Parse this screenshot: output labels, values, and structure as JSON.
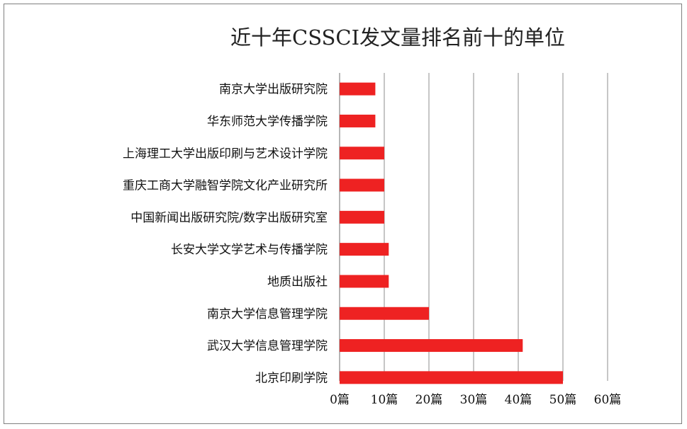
{
  "chart_data": {
    "type": "bar",
    "orientation": "horizontal",
    "title": "近十年CSSCI发文量排名前十的单位",
    "categories": [
      "南京大学出版研究院",
      "华东师范大学传播学院",
      "上海理工大学出版印刷与艺术设计学院",
      "重庆工商大学融智学院文化产业研究所",
      "中国新闻出版研究院/数字出版研究室",
      "长安大学文学艺术与传播学院",
      "地质出版社",
      "南京大学信息管理学院",
      "武汉大学信息管理学院",
      "北京印刷学院"
    ],
    "values": [
      8,
      8,
      10,
      10,
      10,
      11,
      11,
      20,
      41,
      50
    ],
    "xlim": [
      0,
      60
    ],
    "x_ticks": [
      "0篇",
      "10篇",
      "20篇",
      "30篇",
      "40篇",
      "50篇",
      "60篇"
    ],
    "bar_color": "#ee2222",
    "grid": true,
    "legend": "none"
  }
}
